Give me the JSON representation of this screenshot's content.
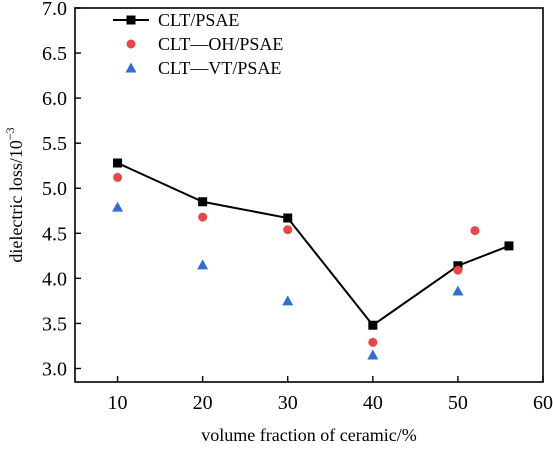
{
  "chart_data": {
    "type": "scatter",
    "xlabel": "volume fraction of ceramic/%",
    "ylabel_main": "dielectric loss/10",
    "ylabel_exponent": "−3",
    "xlim": [
      5,
      60
    ],
    "ylim": [
      2.85,
      7.0
    ],
    "xticks": [
      10,
      20,
      30,
      40,
      50,
      60
    ],
    "yticks": [
      3.0,
      3.5,
      4.0,
      4.5,
      5.0,
      5.5,
      6.0,
      6.5,
      7.0
    ],
    "legend_position": "top-left",
    "series": [
      {
        "name": "CLT/PSAE",
        "marker": "square",
        "connected": true,
        "color": "#000000",
        "x": [
          10,
          20,
          30,
          40,
          50,
          56
        ],
        "y": [
          5.28,
          4.85,
          4.67,
          3.48,
          4.14,
          4.36
        ]
      },
      {
        "name": "CLT—OH/PSAE",
        "marker": "circle",
        "connected": false,
        "color": "#e8474a",
        "x": [
          10,
          20,
          30,
          40,
          50,
          52
        ],
        "y": [
          5.12,
          4.68,
          4.54,
          3.29,
          4.09,
          4.53
        ]
      },
      {
        "name": "CLT—VT/PSAE",
        "marker": "triangle",
        "connected": false,
        "color": "#2f6fd0",
        "x": [
          10,
          20,
          30,
          40,
          50
        ],
        "y": [
          4.79,
          4.15,
          3.75,
          3.15,
          3.86
        ]
      }
    ]
  }
}
